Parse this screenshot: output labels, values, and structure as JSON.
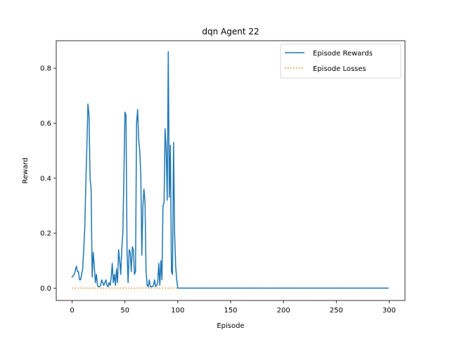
{
  "chart_data": {
    "type": "line",
    "title": "dqn Agent 22",
    "xlabel": "Episode",
    "ylabel": "Reward",
    "xlim": [
      -15,
      315
    ],
    "ylim": [
      -0.045,
      0.9
    ],
    "xticks": [
      0,
      50,
      100,
      150,
      200,
      250,
      300
    ],
    "yticks": [
      0.0,
      0.2,
      0.4,
      0.6,
      0.8
    ],
    "ytick_labels": [
      "0.0",
      "0.2",
      "0.4",
      "0.6",
      "0.8"
    ],
    "legend": {
      "placement": "top-right"
    },
    "series": [
      {
        "name": "Episode Rewards",
        "color": "#1f77b4",
        "style": "solid",
        "x_start": 0,
        "x_end": 299,
        "points": [
          [
            0,
            0.04
          ],
          [
            2,
            0.05
          ],
          [
            4,
            0.08
          ],
          [
            5,
            0.06
          ],
          [
            6,
            0.06
          ],
          [
            7,
            0.03
          ],
          [
            8,
            0.03
          ],
          [
            9,
            0.05
          ],
          [
            10,
            0.07
          ],
          [
            11,
            0.14
          ],
          [
            12,
            0.22
          ],
          [
            13,
            0.38
          ],
          [
            14,
            0.52
          ],
          [
            15,
            0.67
          ],
          [
            16,
            0.63
          ],
          [
            17,
            0.4
          ],
          [
            18,
            0.36
          ],
          [
            19,
            0.04
          ],
          [
            20,
            0.13
          ],
          [
            21,
            0.08
          ],
          [
            22,
            0.02
          ],
          [
            23,
            0.05
          ],
          [
            24,
            0.01
          ],
          [
            25,
            0.005
          ],
          [
            26,
            0.005
          ],
          [
            27,
            0.01
          ],
          [
            28,
            0.03
          ],
          [
            29,
            0.02
          ],
          [
            30,
            0.01
          ],
          [
            31,
            0.02
          ],
          [
            32,
            0.03
          ],
          [
            33,
            0.01
          ],
          [
            34,
            0.005
          ],
          [
            35,
            0.02
          ],
          [
            36,
            0.01
          ],
          [
            37,
            0.04
          ],
          [
            38,
            0.09
          ],
          [
            39,
            0.02
          ],
          [
            40,
            0.05
          ],
          [
            41,
            0.01
          ],
          [
            42,
            0.07
          ],
          [
            43,
            0.02
          ],
          [
            44,
            0.14
          ],
          [
            45,
            0.1
          ],
          [
            46,
            0.05
          ],
          [
            47,
            0.14
          ],
          [
            48,
            0.2
          ],
          [
            49,
            0.4
          ],
          [
            50,
            0.64
          ],
          [
            51,
            0.63
          ],
          [
            52,
            0.13
          ],
          [
            53,
            0.02
          ],
          [
            54,
            0.14
          ],
          [
            55,
            0.13
          ],
          [
            56,
            0.06
          ],
          [
            57,
            0.15
          ],
          [
            58,
            0.14
          ],
          [
            59,
            0.05
          ],
          [
            60,
            0.06
          ],
          [
            61,
            0.6
          ],
          [
            62,
            0.65
          ],
          [
            63,
            0.54
          ],
          [
            64,
            0.5
          ],
          [
            65,
            0.41
          ],
          [
            66,
            0.12
          ],
          [
            67,
            0.3
          ],
          [
            68,
            0.36
          ],
          [
            69,
            0.31
          ],
          [
            70,
            0.06
          ],
          [
            71,
            0.01
          ],
          [
            72,
            0.005
          ],
          [
            73,
            0.03
          ],
          [
            74,
            0.005
          ],
          [
            75,
            0.005
          ],
          [
            76,
            0.005
          ],
          [
            77,
            0.01
          ],
          [
            78,
            0.03
          ],
          [
            79,
            0.005
          ],
          [
            80,
            0.01
          ],
          [
            81,
            0.02
          ],
          [
            82,
            0.09
          ],
          [
            83,
            0.01
          ],
          [
            84,
            0.1
          ],
          [
            85,
            0.03
          ],
          [
            86,
            0.3
          ],
          [
            87,
            0.31
          ],
          [
            88,
            0.58
          ],
          [
            89,
            0.5
          ],
          [
            90,
            0.32
          ],
          [
            91,
            0.86
          ],
          [
            92,
            0.33
          ],
          [
            93,
            0.52
          ],
          [
            94,
            0.06
          ],
          [
            95,
            0.05
          ],
          [
            96,
            0.53
          ],
          [
            97,
            0.2
          ],
          [
            98,
            0.08
          ],
          [
            99,
            0.03
          ],
          [
            100,
            0.0
          ],
          [
            299,
            0.0
          ]
        ]
      },
      {
        "name": "Episode Losses",
        "color": "#ff7f0e",
        "style": "dotted",
        "x_start": 0,
        "x_end": 299,
        "constant_value": 0.0
      }
    ]
  }
}
